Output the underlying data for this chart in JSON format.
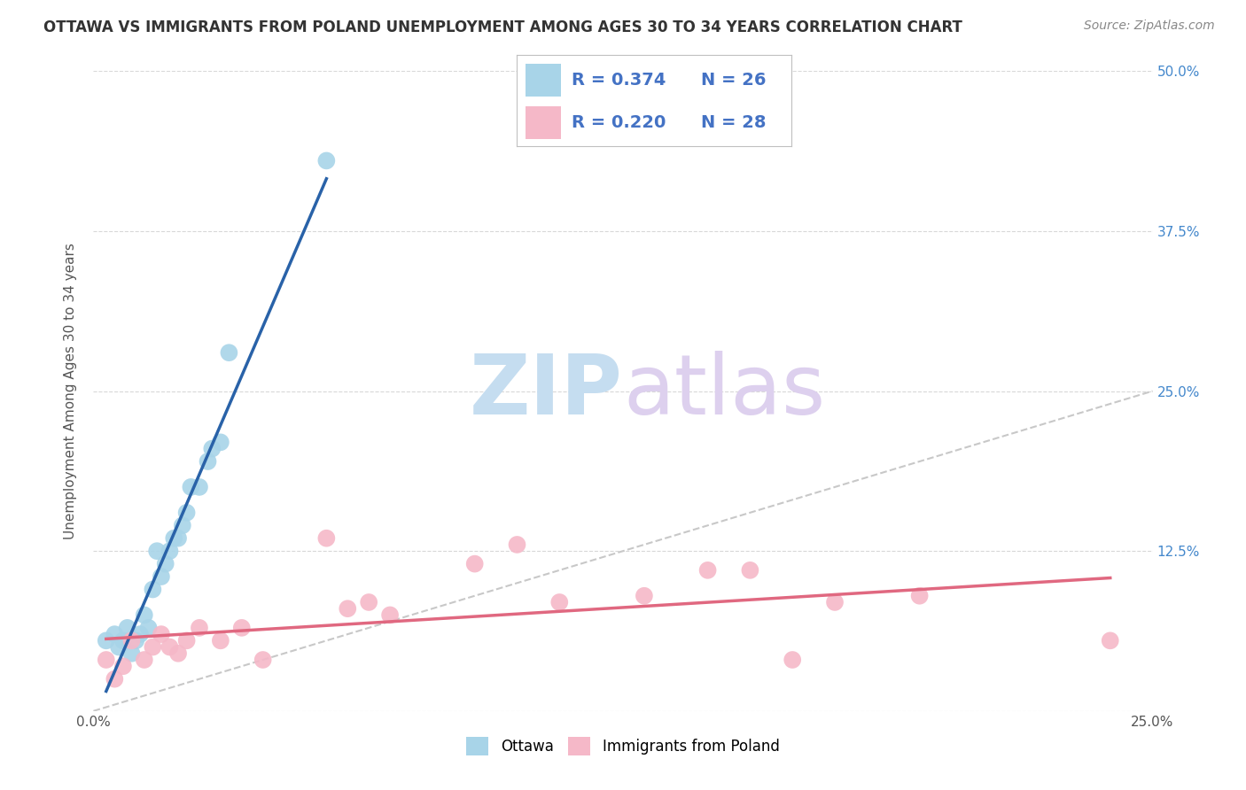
{
  "title": "OTTAWA VS IMMIGRANTS FROM POLAND UNEMPLOYMENT AMONG AGES 30 TO 34 YEARS CORRELATION CHART",
  "source": "Source: ZipAtlas.com",
  "ylabel": "Unemployment Among Ages 30 to 34 years",
  "xlim": [
    0.0,
    0.25
  ],
  "ylim": [
    0.0,
    0.5
  ],
  "xtick_positions": [
    0.0,
    0.05,
    0.1,
    0.15,
    0.2,
    0.25
  ],
  "xtick_labels": [
    "0.0%",
    "",
    "",
    "",
    "",
    "25.0%"
  ],
  "ytick_positions": [
    0.0,
    0.125,
    0.25,
    0.375,
    0.5
  ],
  "ytick_labels_right": [
    "",
    "12.5%",
    "25.0%",
    "37.5%",
    "50.0%"
  ],
  "ottawa_R": 0.374,
  "ottawa_N": 26,
  "poland_R": 0.22,
  "poland_N": 28,
  "ottawa_color": "#a8d4e8",
  "poland_color": "#f5b8c8",
  "trendline_ottawa_color": "#2962a8",
  "trendline_poland_color": "#e06880",
  "diagonal_color": "#c8c8c8",
  "background_color": "#ffffff",
  "grid_color": "#d8d8d8",
  "title_color": "#333333",
  "source_color": "#888888",
  "legend_text_color": "#4472c4",
  "right_axis_color": "#4488cc",
  "watermark_ZIP_color": "#c5ddf0",
  "watermark_atlas_color": "#ddd0ee",
  "ottawa_x": [
    0.003,
    0.005,
    0.006,
    0.007,
    0.008,
    0.009,
    0.01,
    0.011,
    0.012,
    0.013,
    0.014,
    0.015,
    0.016,
    0.017,
    0.018,
    0.019,
    0.02,
    0.021,
    0.022,
    0.023,
    0.025,
    0.027,
    0.028,
    0.03,
    0.032,
    0.055
  ],
  "ottawa_y": [
    0.055,
    0.06,
    0.05,
    0.055,
    0.065,
    0.045,
    0.055,
    0.06,
    0.075,
    0.065,
    0.095,
    0.125,
    0.105,
    0.115,
    0.125,
    0.135,
    0.135,
    0.145,
    0.155,
    0.175,
    0.175,
    0.195,
    0.205,
    0.21,
    0.28,
    0.43
  ],
  "poland_x": [
    0.003,
    0.005,
    0.007,
    0.009,
    0.012,
    0.014,
    0.016,
    0.018,
    0.02,
    0.022,
    0.025,
    0.03,
    0.035,
    0.04,
    0.055,
    0.06,
    0.065,
    0.07,
    0.09,
    0.1,
    0.11,
    0.13,
    0.145,
    0.155,
    0.165,
    0.175,
    0.195,
    0.24
  ],
  "poland_y": [
    0.04,
    0.025,
    0.035,
    0.055,
    0.04,
    0.05,
    0.06,
    0.05,
    0.045,
    0.055,
    0.065,
    0.055,
    0.065,
    0.04,
    0.135,
    0.08,
    0.085,
    0.075,
    0.115,
    0.13,
    0.085,
    0.09,
    0.11,
    0.11,
    0.04,
    0.085,
    0.09,
    0.055
  ]
}
